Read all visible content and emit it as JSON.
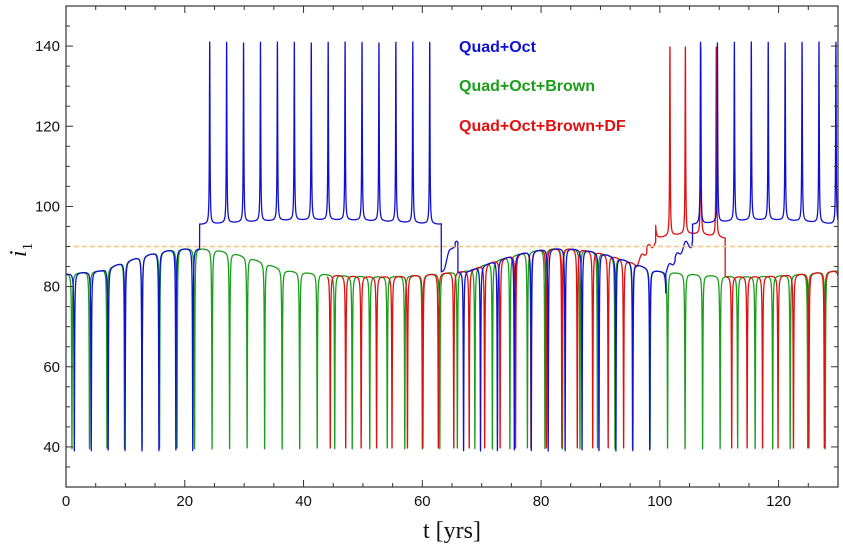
{
  "chart_data": {
    "type": "line",
    "xlabel": "t [yrs]",
    "ylabel_main": "i",
    "ylabel_sub": "1",
    "xlim": [
      0,
      130
    ],
    "ylim": [
      30,
      150
    ],
    "x_ticks": [
      0,
      20,
      40,
      60,
      80,
      100,
      120
    ],
    "y_ticks": [
      40,
      60,
      80,
      100,
      120,
      140
    ],
    "x_tick_labels": [
      "0",
      "20",
      "40",
      "60",
      "80",
      "100",
      "120"
    ],
    "y_tick_labels": [
      "40",
      "60",
      "80",
      "100",
      "120",
      "140"
    ],
    "reference_line": {
      "y": 90,
      "color": "#f6c28f",
      "style": "dashed"
    },
    "legend": {
      "placement": "top-center"
    },
    "series": [
      {
        "name": "Quad+Oct",
        "color": "#1010d0",
        "x_range": [
          0,
          130
        ],
        "period": 2.85,
        "phase": 1.4,
        "high_phases": [
          [
            22.5,
            63.2
          ],
          [
            105.5,
            130
          ]
        ],
        "transition_phases": [
          [
            63.2,
            66
          ],
          [
            101,
            105.5
          ]
        ],
        "low_baseline": 84,
        "high_baseline": 95.5,
        "high_spike_peak": 141,
        "low_spike_min": 39
      },
      {
        "name": "Quad+Oct+Brown",
        "color": "#1a9e1a",
        "x_range": [
          0,
          130
        ],
        "period": 2.95,
        "phase": 1.0,
        "high_phases": [],
        "transition_phases": [],
        "low_baseline": 84,
        "high_baseline": 92,
        "high_spike_peak": 140,
        "low_spike_min": 39.5
      },
      {
        "name": "Quad+Oct+Brown+DF",
        "color": "#e01010",
        "x_range": [
          44,
          130
        ],
        "period": 2.6,
        "phase": 0.3,
        "high_phases": [
          [
            99.3,
            111
          ]
        ],
        "transition_phases": [
          [
            96,
            99.3
          ]
        ],
        "low_baseline": 84,
        "high_baseline": 92,
        "high_spike_peak": 140,
        "low_spike_min": 39.5
      }
    ]
  }
}
